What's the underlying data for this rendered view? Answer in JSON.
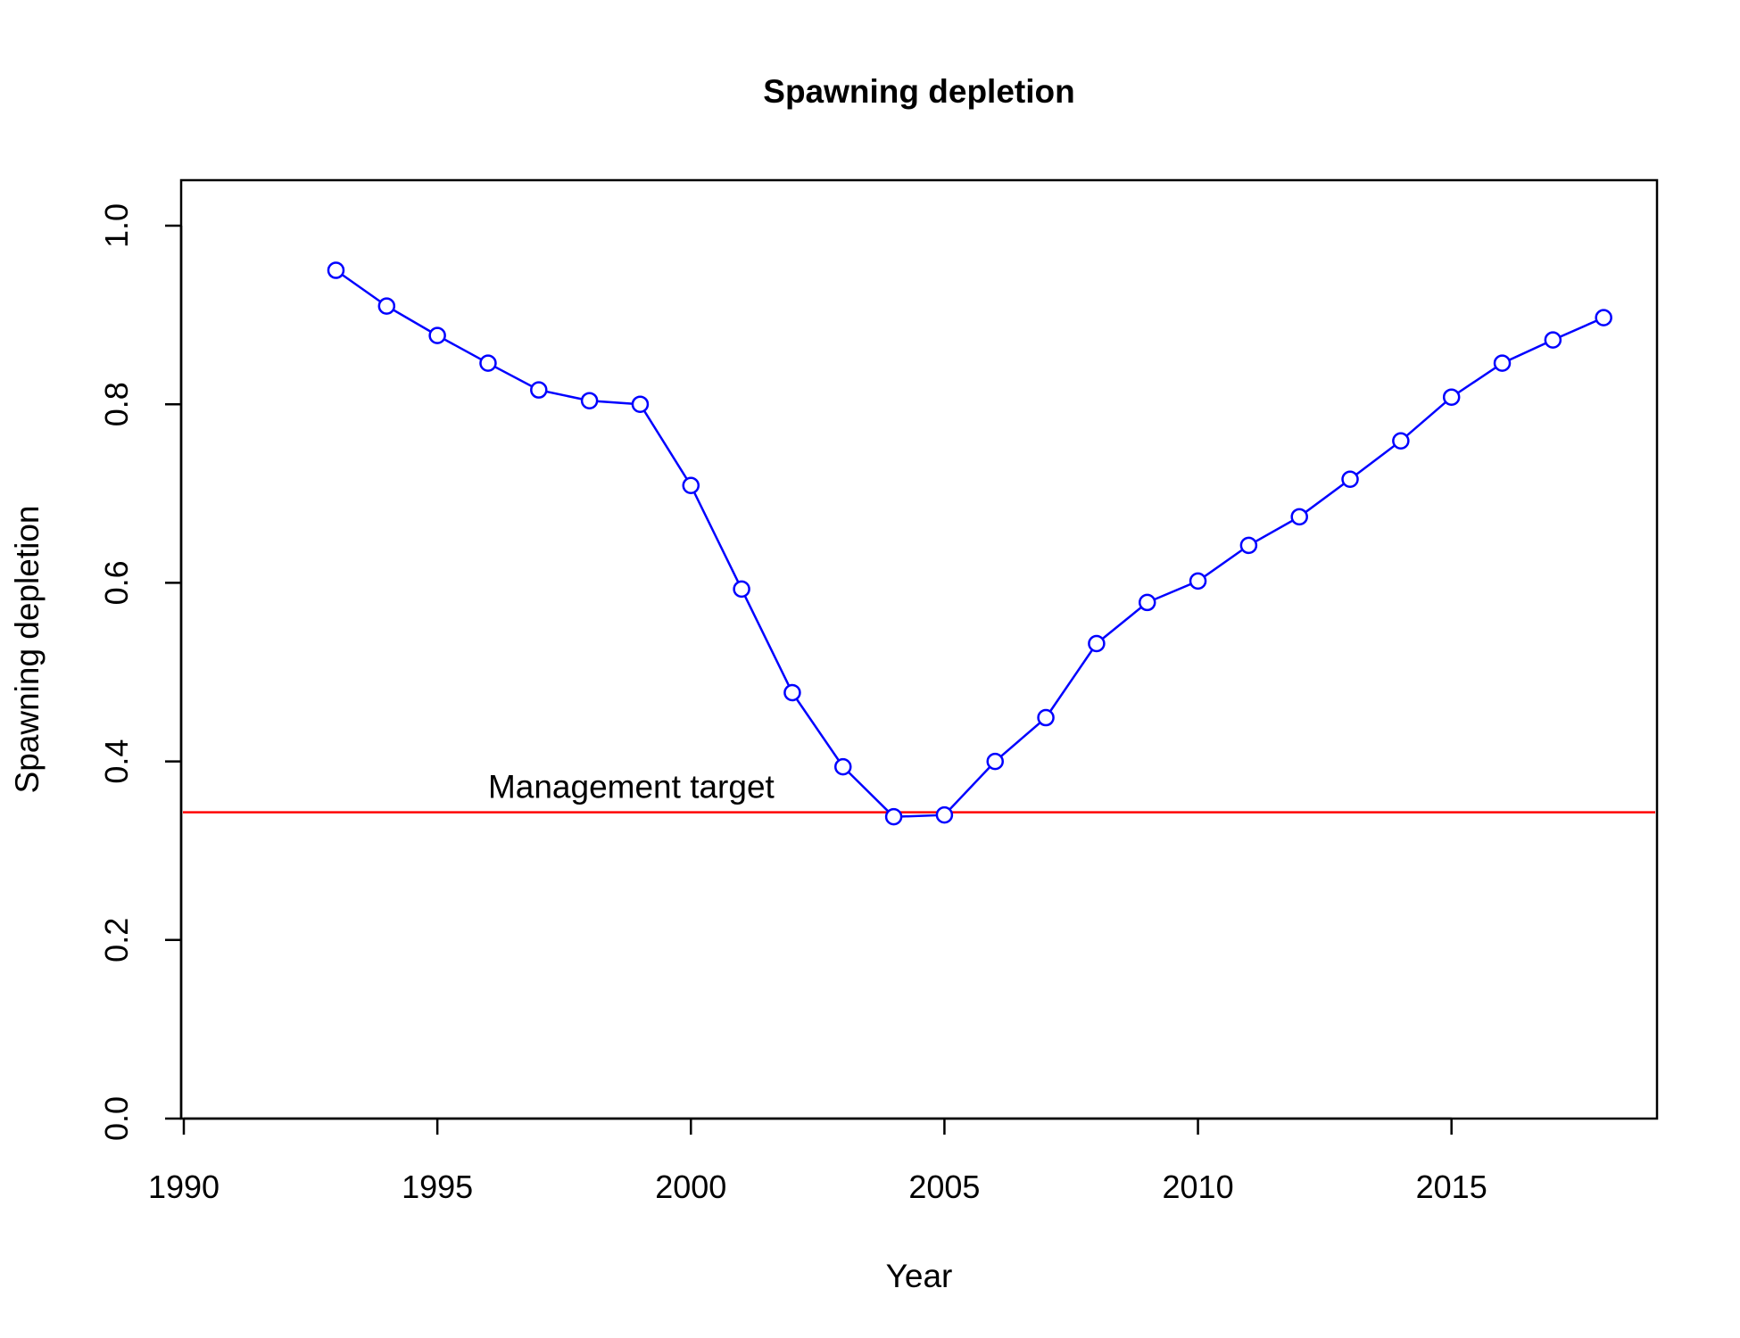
{
  "chart_data": {
    "type": "line",
    "title": "Spawning depletion",
    "xlabel": "Year",
    "ylabel": "Spawning depletion",
    "xlim": [
      1990,
      2019
    ],
    "ylim": [
      0,
      1.05
    ],
    "x_ticks": [
      1990,
      1995,
      2000,
      2005,
      2010,
      2015
    ],
    "y_ticks": [
      "0.0",
      "0.2",
      "0.4",
      "0.6",
      "0.8",
      "1.0"
    ],
    "grid": false,
    "legend": "none",
    "series": [
      {
        "color": "#0000ff",
        "marker": "open-circle",
        "x": [
          1993,
          1994,
          1995,
          1996,
          1997,
          1998,
          1999,
          2000,
          2001,
          2002,
          2003,
          2004,
          2005,
          2006,
          2007,
          2008,
          2009,
          2010,
          2011,
          2012,
          2013,
          2014,
          2015,
          2016,
          2017,
          2018
        ],
        "y": [
          0.95,
          0.91,
          0.877,
          0.846,
          0.816,
          0.804,
          0.8,
          0.709,
          0.593,
          0.477,
          0.394,
          0.338,
          0.34,
          0.4,
          0.449,
          0.532,
          0.578,
          0.602,
          0.642,
          0.674,
          0.716,
          0.759,
          0.808,
          0.846,
          0.872,
          0.897
        ]
      }
    ],
    "reference_line": {
      "y": 0.343,
      "color": "#ff0000",
      "label": "Management target",
      "label_x": 1996
    }
  }
}
